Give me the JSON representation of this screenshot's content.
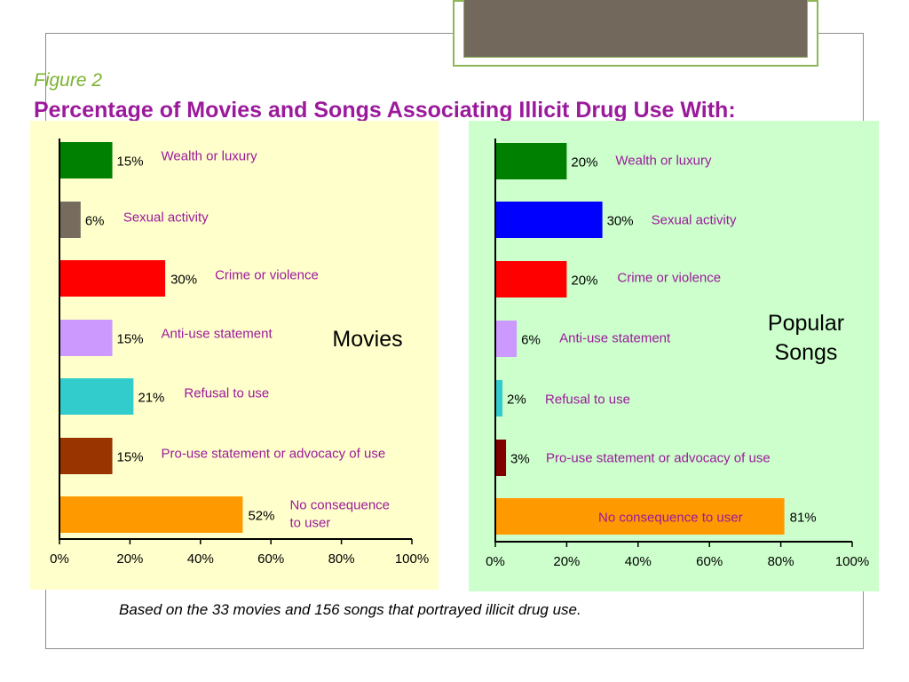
{
  "figure_label": "Figure 2",
  "title": "Percentage of Movies and Songs Associating Illicit Drug Use With:",
  "caption": "Based on the 33 movies and 156 songs that portrayed illicit drug use.",
  "colors": {
    "figure_label": "#7ab32e",
    "title": "#9b1a9b",
    "category_label": "#9b1a9b",
    "movies_panel_bg": "#ffffcc",
    "songs_panel_bg": "#ccffcc",
    "frame_border": "#8c8c8c",
    "header_accent": "#8db657"
  },
  "chart_data": [
    {
      "type": "bar",
      "orientation": "horizontal",
      "panel_title": [
        "Movies"
      ],
      "categories": [
        "Wealth or luxury",
        "Sexual activity",
        "Crime or violence",
        "Anti-use statement",
        "Refusal to use",
        "Pro-use statement or advocacy of use",
        "No consequence to user"
      ],
      "category_label_lines": [
        [
          "Wealth or luxury"
        ],
        [
          "Sexual activity"
        ],
        [
          "Crime or violence"
        ],
        [
          "Anti-use statement"
        ],
        [
          "Refusal to use"
        ],
        [
          "Pro-use statement or advocacy of use"
        ],
        [
          "No consequence",
          "to user"
        ]
      ],
      "values": [
        15,
        6,
        30,
        15,
        21,
        15,
        52
      ],
      "value_labels": [
        "15%",
        "6%",
        "30%",
        "15%",
        "21%",
        "15%",
        "52%"
      ],
      "bar_colors": [
        "#008000",
        "#776b5e",
        "#ff0000",
        "#cc99ff",
        "#33cccc",
        "#993300",
        "#ff9900"
      ],
      "xlim": [
        0,
        100
      ],
      "xticks": [
        "0%",
        "20%",
        "40%",
        "60%",
        "80%",
        "100%"
      ],
      "grid": false,
      "legend": "none"
    },
    {
      "type": "bar",
      "orientation": "horizontal",
      "panel_title": [
        "Popular",
        "Songs"
      ],
      "categories": [
        "Wealth or luxury",
        "Sexual activity",
        "Crime or violence",
        "Anti-use statement",
        "Refusal to use",
        "Pro-use statement or advocacy of use",
        "No consequence to user"
      ],
      "category_label_lines": [
        [
          "Wealth or luxury"
        ],
        [
          "Sexual activity"
        ],
        [
          "Crime or violence"
        ],
        [
          "Anti-use statement"
        ],
        [
          "Refusal to use"
        ],
        [
          "Pro-use statement or advocacy of use"
        ],
        [
          "No consequence to user"
        ]
      ],
      "values": [
        20,
        30,
        20,
        6,
        2,
        3,
        81
      ],
      "value_labels": [
        "20%",
        "30%",
        "20%",
        "6%",
        "2%",
        "3%",
        "81%"
      ],
      "bar_colors": [
        "#008000",
        "#0000ff",
        "#ff0000",
        "#cc99ff",
        "#33cccc",
        "#800000",
        "#ff9900"
      ],
      "xlim": [
        0,
        100
      ],
      "xticks": [
        "0%",
        "20%",
        "40%",
        "60%",
        "80%",
        "100%"
      ],
      "grid": false,
      "legend": "none"
    }
  ]
}
